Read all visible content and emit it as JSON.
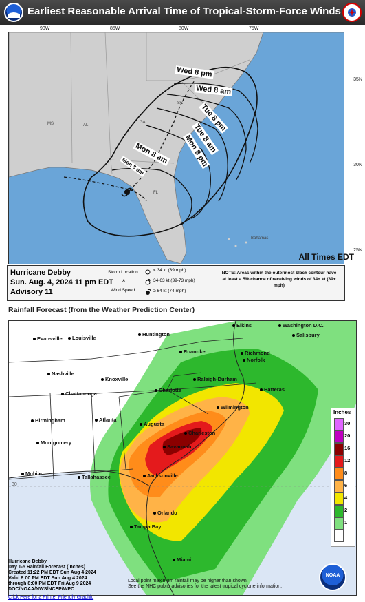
{
  "top": {
    "title": "Earliest Reasonable Arrival Time of Tropical-Storm-Force Winds",
    "longitudes": [
      "90W",
      "85W",
      "80W",
      "75W"
    ],
    "latitudes": [
      "35N",
      "30N",
      "25N"
    ],
    "states": [
      "MS",
      "AL",
      "GA",
      "SC",
      "FL"
    ],
    "place": "Bahamas",
    "time_labels": [
      "Wed 8 pm",
      "Wed 8 am",
      "Tue 8 pm",
      "Tue 8 am",
      "Mon 8 pm",
      "Mon 8 am",
      "Mon 8 am"
    ],
    "all_times": "All Times EDT",
    "storm_name": "Hurricane Debby",
    "issue_time": "Sun. Aug. 4, 2024  11 pm EDT",
    "advisory": "Advisory 11",
    "legend": {
      "storm_location": "Storm Location",
      "amp": "&",
      "wind_speed": "Wind Speed",
      "low": "< 34 kt (39 mph)",
      "mid": "34-63 kt (39-73 mph)",
      "high": "≥ 64 kt (74 mph)"
    },
    "note": "NOTE: Areas within the outermost black contour have at least a 5% chance of receiving winds of 34+ kt (39+ mph)"
  },
  "rain": {
    "heading": "Rainfall Forecast (from the Weather Prediction Center)",
    "cities": [
      {
        "name": "Richmond"
      },
      {
        "name": "Evansville"
      },
      {
        "name": "Louisville"
      },
      {
        "name": "Huntington"
      },
      {
        "name": "Elkins"
      },
      {
        "name": "Washington D.C."
      },
      {
        "name": "Salisbury"
      },
      {
        "name": "Roanoke"
      },
      {
        "name": "Norfolk"
      },
      {
        "name": "Nashville"
      },
      {
        "name": "Knoxville"
      },
      {
        "name": "Raleigh-Durham"
      },
      {
        "name": "Chattanooga"
      },
      {
        "name": "Charlotte"
      },
      {
        "name": "Hatteras"
      },
      {
        "name": "Wilmington"
      },
      {
        "name": "Birmingham"
      },
      {
        "name": "Atlanta"
      },
      {
        "name": "Augusta"
      },
      {
        "name": "Charleston"
      },
      {
        "name": "Montgomery"
      },
      {
        "name": "Savannah"
      },
      {
        "name": "Mobile"
      },
      {
        "name": "Tallahassee"
      },
      {
        "name": "Jacksonville"
      },
      {
        "name": "Orlando"
      },
      {
        "name": "Tampa Bay"
      },
      {
        "name": "Miami"
      }
    ],
    "lat_label": "30",
    "legend_title": "Inches",
    "legend_levels": [
      {
        "value": "30",
        "color": "#e066ff"
      },
      {
        "value": "20",
        "color": "#c000c0"
      },
      {
        "value": "16",
        "color": "#8b0000"
      },
      {
        "value": "12",
        "color": "#e41a1c"
      },
      {
        "value": "8",
        "color": "#ff8c1a"
      },
      {
        "value": "6",
        "color": "#ffb347"
      },
      {
        "value": "4",
        "color": "#f2e600"
      },
      {
        "value": "2",
        "color": "#2db82d"
      },
      {
        "value": "1",
        "color": "#7fe07f"
      },
      {
        "value": "",
        "color": "#ffffff"
      }
    ],
    "info": [
      "Hurricane Debby",
      "Day 1-5 Rainfall Forecast (inches)",
      "Created 11:22 PM EDT Sun Aug 4 2024",
      "Valid 8:00 PM EDT Sun Aug 4 2024",
      "through 8:00 PM EDT Fri Aug 9 2024",
      "DOC/NOAA/NWS/NCEP/WPC"
    ],
    "disclaimer_1": "Local point maximum rainfall may be higher than shown.",
    "disclaimer_2": "See the NHC public advisories for the latest tropical cyclone information.",
    "print_link": "Click Here for a Printer Friendly Graphic",
    "noaa_text": "NOAA"
  }
}
